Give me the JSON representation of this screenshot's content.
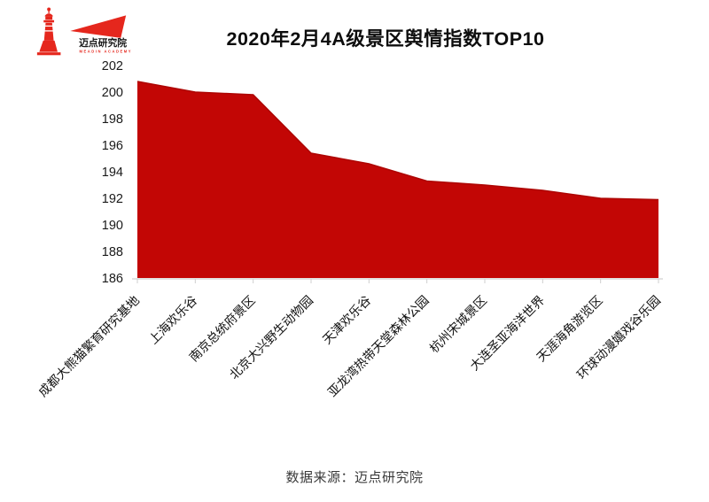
{
  "logo": {
    "name": "迈点研究院",
    "subtitle": "MEADIN ACADEMY"
  },
  "header": {
    "title": "2020年2月4A级景区舆情指数TOP10"
  },
  "chart_data": {
    "type": "area",
    "title": "2020年2月4A级景区舆情指数TOP10",
    "categories": [
      "成都大熊猫繁育研究基地",
      "上海欢乐谷",
      "南京总统府景区",
      "北京大兴野生动物园",
      "天津欢乐谷",
      "亚龙湾热带天堂森林公园",
      "杭州宋城景区",
      "大连圣亚海洋世界",
      "天涯海角游览区",
      "环球动漫嬉戏谷乐园"
    ],
    "values": [
      200.8,
      200.0,
      199.8,
      195.4,
      194.6,
      193.3,
      193.0,
      192.6,
      192.0,
      191.9
    ],
    "xlabel": "",
    "ylabel": "",
    "ylim": [
      186,
      202
    ],
    "ytick_step": 2,
    "grid": false,
    "legend": false,
    "colors": {
      "fill": "#c20605",
      "line": "#ad0503",
      "axis": "#d9d9d9",
      "tick": "#cfcfcf",
      "logo_red": "#e5271d"
    }
  },
  "footer": {
    "source": "数据来源：迈点研究院"
  }
}
